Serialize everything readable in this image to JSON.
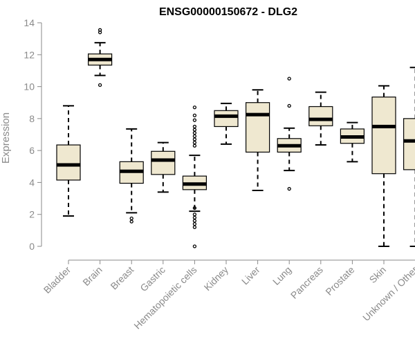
{
  "chart_data": {
    "type": "boxplot",
    "title": "ENSG00000150672 - DLG2",
    "ylabel": "Expression",
    "xlabel": "",
    "ylim": [
      0,
      14
    ],
    "yticks": [
      0,
      2,
      4,
      6,
      8,
      10,
      12,
      14
    ],
    "grid": false,
    "colors": {
      "box_fill": "#efe8d0",
      "box_stroke": "#000000",
      "median": "#000000",
      "axis": "#8a8a8a"
    },
    "categories": [
      "Bladder",
      "Brain",
      "Breast",
      "Gastric",
      "Hematopoietic cells",
      "Kidney",
      "Liver",
      "Lung",
      "Pancreas",
      "Prostate",
      "Skin",
      "Unknown / Other"
    ],
    "boxes": [
      {
        "category": "Bladder",
        "whisker_low": 1.9,
        "q1": 4.15,
        "median": 5.1,
        "q3": 6.35,
        "whisker_high": 8.8,
        "outliers": []
      },
      {
        "category": "Brain",
        "whisker_low": 10.7,
        "q1": 11.35,
        "median": 11.7,
        "q3": 12.05,
        "whisker_high": 12.75,
        "outliers": [
          10.1,
          13.4,
          13.55
        ]
      },
      {
        "category": "Breast",
        "whisker_low": 2.1,
        "q1": 3.95,
        "median": 4.7,
        "q3": 5.3,
        "whisker_high": 7.35,
        "outliers": [
          1.55,
          1.75
        ]
      },
      {
        "category": "Gastric",
        "whisker_low": 3.4,
        "q1": 4.5,
        "median": 5.4,
        "q3": 5.95,
        "whisker_high": 6.5,
        "outliers": []
      },
      {
        "category": "Hematopoietic cells",
        "whisker_low": 2.2,
        "q1": 3.55,
        "median": 3.9,
        "q3": 4.4,
        "whisker_high": 5.7,
        "outliers": [
          0.0,
          1.2,
          1.4,
          1.6,
          1.8,
          2.0,
          2.4,
          6.3,
          6.5,
          6.7,
          6.9,
          7.1,
          7.3,
          7.5,
          7.9,
          8.2,
          8.7
        ]
      },
      {
        "category": "Kidney",
        "whisker_low": 6.4,
        "q1": 7.5,
        "median": 8.15,
        "q3": 8.5,
        "whisker_high": 8.95,
        "outliers": []
      },
      {
        "category": "Liver",
        "whisker_low": 3.5,
        "q1": 5.9,
        "median": 8.25,
        "q3": 9.0,
        "whisker_high": 9.8,
        "outliers": []
      },
      {
        "category": "Lung",
        "whisker_low": 4.75,
        "q1": 5.9,
        "median": 6.3,
        "q3": 6.75,
        "whisker_high": 7.4,
        "outliers": [
          3.6,
          8.8,
          10.5
        ]
      },
      {
        "category": "Pancreas",
        "whisker_low": 6.35,
        "q1": 7.55,
        "median": 7.95,
        "q3": 8.75,
        "whisker_high": 9.65,
        "outliers": []
      },
      {
        "category": "Prostate",
        "whisker_low": 5.3,
        "q1": 6.45,
        "median": 6.85,
        "q3": 7.35,
        "whisker_high": 7.75,
        "outliers": []
      },
      {
        "category": "Skin",
        "whisker_low": 0.0,
        "q1": 4.55,
        "median": 7.5,
        "q3": 9.35,
        "whisker_high": 10.05,
        "outliers": []
      },
      {
        "category": "Unknown / Other",
        "whisker_low": 0.0,
        "q1": 4.8,
        "median": 6.6,
        "q3": 8.0,
        "whisker_high": 11.2,
        "outliers": []
      }
    ]
  }
}
